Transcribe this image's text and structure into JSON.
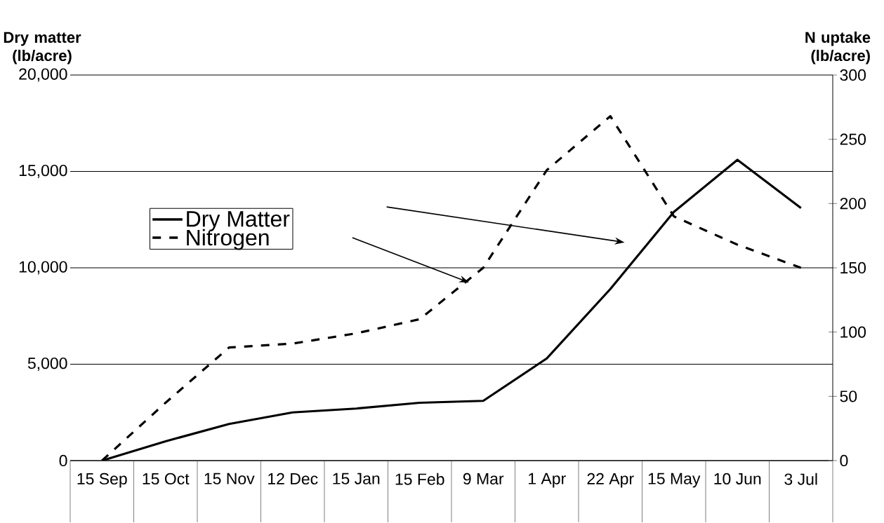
{
  "chart_data": {
    "type": "line",
    "ylabel": "Dry matter (lb/acre)",
    "y2label": "N uptake (lb/acre)",
    "categories": [
      "15 Sep",
      "15 Oct",
      "15 Nov",
      "12 Dec",
      "15 Jan",
      "15 Feb",
      "9 Mar",
      "1 Apr",
      "22 Apr",
      "15 May",
      "10 Jun",
      "3 Jul"
    ],
    "series": [
      {
        "name": "Dry Matter",
        "color": "#000000",
        "line_style": "solid",
        "values": [
          0,
          1000,
          1900,
          2500,
          2700,
          3000,
          3100,
          5300,
          8900,
          12900,
          15600,
          13100
        ]
      },
      {
        "name": "Nitrogen",
        "color": "#000000",
        "line_style": "dashed",
        "axis": "y2",
        "values": [
          0,
          45,
          88,
          91,
          99,
          110,
          150,
          226,
          268,
          190,
          168,
          150
        ]
      }
    ],
    "ylim": [
      0,
      20000
    ],
    "yticks": [
      0,
      {
        "value": 5000,
        "label": "5,000"
      },
      {
        "value": 10000,
        "label": "10,000"
      },
      {
        "value": 15000,
        "label": "15,000"
      },
      {
        "value": 20000,
        "label": "20,000"
      }
    ],
    "y2lim": [
      0,
      300
    ],
    "y2ticks": [
      0,
      50,
      100,
      150,
      200,
      250,
      300
    ],
    "grid": "y",
    "legend": "left"
  }
}
